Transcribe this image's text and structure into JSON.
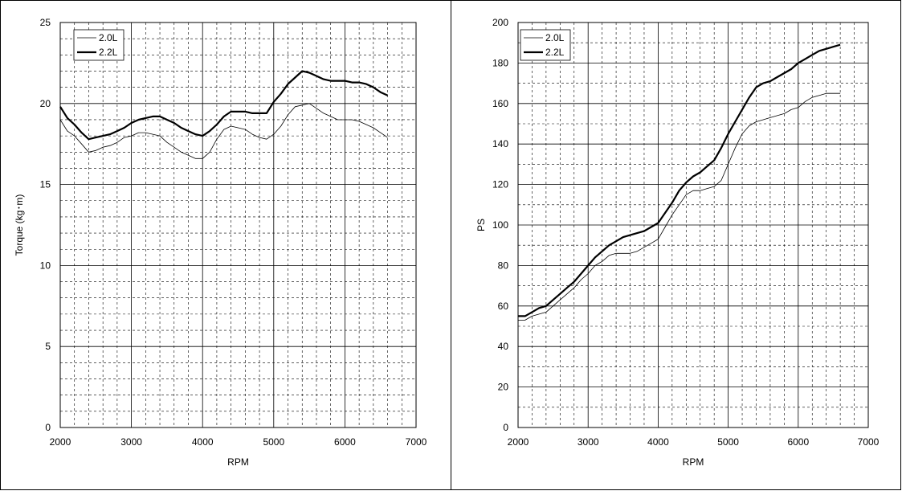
{
  "chart_data": [
    {
      "type": "line",
      "title": "",
      "xlabel": "RPM",
      "ylabel": "Torque (kg･m)",
      "xlim": [
        2000,
        7000
      ],
      "ylim": [
        0,
        25
      ],
      "x_ticks": [
        2000,
        3000,
        4000,
        5000,
        6000,
        7000
      ],
      "y_ticks": [
        0,
        5,
        10,
        15,
        20,
        25
      ],
      "grid": true,
      "legend_position": "top-left",
      "series": [
        {
          "name": "2.0L",
          "weight": "thin",
          "x": [
            2000,
            2100,
            2200,
            2300,
            2400,
            2500,
            2600,
            2700,
            2800,
            2900,
            3000,
            3100,
            3200,
            3300,
            3400,
            3500,
            3600,
            3700,
            3800,
            3900,
            4000,
            4100,
            4200,
            4300,
            4400,
            4500,
            4600,
            4700,
            4800,
            4900,
            5000,
            5100,
            5200,
            5300,
            5400,
            5500,
            5600,
            5700,
            5800,
            5900,
            6000,
            6100,
            6200,
            6300,
            6400,
            6500,
            6600
          ],
          "y": [
            19.0,
            18.3,
            18.0,
            17.5,
            17.0,
            17.1,
            17.3,
            17.4,
            17.6,
            17.9,
            18.0,
            18.2,
            18.2,
            18.1,
            18.0,
            17.6,
            17.3,
            17.0,
            16.8,
            16.6,
            16.6,
            17.0,
            17.8,
            18.4,
            18.6,
            18.5,
            18.4,
            18.1,
            17.9,
            17.8,
            18.1,
            18.6,
            19.3,
            19.8,
            19.9,
            20.0,
            19.7,
            19.4,
            19.2,
            19.0,
            19.0,
            19.0,
            18.9,
            18.7,
            18.5,
            18.2,
            17.9
          ]
        },
        {
          "name": "2.2L",
          "weight": "bold",
          "x": [
            2000,
            2100,
            2200,
            2300,
            2400,
            2500,
            2600,
            2700,
            2800,
            2900,
            3000,
            3100,
            3200,
            3300,
            3400,
            3500,
            3600,
            3700,
            3800,
            3900,
            4000,
            4100,
            4200,
            4300,
            4400,
            4500,
            4600,
            4700,
            4800,
            4900,
            5000,
            5100,
            5200,
            5300,
            5400,
            5500,
            5600,
            5700,
            5800,
            5900,
            6000,
            6100,
            6200,
            6300,
            6400,
            6500,
            6600
          ],
          "y": [
            19.8,
            19.1,
            18.7,
            18.2,
            17.8,
            17.9,
            18.0,
            18.1,
            18.3,
            18.5,
            18.8,
            19.0,
            19.1,
            19.2,
            19.2,
            19.0,
            18.8,
            18.5,
            18.3,
            18.1,
            18.0,
            18.3,
            18.7,
            19.2,
            19.5,
            19.5,
            19.5,
            19.4,
            19.4,
            19.4,
            20.1,
            20.6,
            21.2,
            21.6,
            22.0,
            21.9,
            21.7,
            21.5,
            21.4,
            21.4,
            21.4,
            21.3,
            21.3,
            21.2,
            21.0,
            20.7,
            20.5
          ]
        }
      ]
    },
    {
      "type": "line",
      "title": "",
      "xlabel": "RPM",
      "ylabel": "PS",
      "xlim": [
        2000,
        7000
      ],
      "ylim": [
        0,
        200
      ],
      "x_ticks": [
        2000,
        3000,
        4000,
        5000,
        6000,
        7000
      ],
      "y_ticks": [
        0,
        20,
        40,
        60,
        80,
        100,
        120,
        140,
        160,
        180,
        200
      ],
      "grid": true,
      "legend_position": "top-left",
      "series": [
        {
          "name": "2.0L",
          "weight": "thin",
          "x": [
            2000,
            2100,
            2200,
            2300,
            2400,
            2500,
            2600,
            2700,
            2800,
            2900,
            3000,
            3100,
            3200,
            3300,
            3400,
            3500,
            3600,
            3700,
            3800,
            3900,
            4000,
            4100,
            4200,
            4300,
            4400,
            4500,
            4600,
            4700,
            4800,
            4900,
            5000,
            5100,
            5200,
            5300,
            5400,
            5500,
            5600,
            5700,
            5800,
            5900,
            6000,
            6100,
            6200,
            6300,
            6400,
            6500,
            6600
          ],
          "y": [
            53,
            53,
            55,
            56,
            57,
            60,
            63,
            66,
            69,
            73,
            76,
            80,
            82,
            85,
            86,
            86,
            86,
            87,
            89,
            91,
            93,
            99,
            105,
            110,
            115,
            117,
            117,
            118,
            119,
            122,
            130,
            138,
            145,
            149,
            151,
            152,
            153,
            154,
            155,
            157,
            158,
            161,
            163,
            164,
            165,
            165,
            165
          ]
        },
        {
          "name": "2.2L",
          "weight": "bold",
          "x": [
            2000,
            2100,
            2200,
            2300,
            2400,
            2500,
            2600,
            2700,
            2800,
            2900,
            3000,
            3100,
            3200,
            3300,
            3400,
            3500,
            3600,
            3700,
            3800,
            3900,
            4000,
            4100,
            4200,
            4300,
            4400,
            4500,
            4600,
            4700,
            4800,
            4900,
            5000,
            5100,
            5200,
            5300,
            5400,
            5500,
            5600,
            5700,
            5800,
            5900,
            6000,
            6100,
            6200,
            6300,
            6400,
            6500,
            6600
          ],
          "y": [
            55,
            55,
            57,
            59,
            60,
            63,
            66,
            69,
            72,
            76,
            80,
            84,
            87,
            90,
            92,
            94,
            95,
            96,
            97,
            99,
            101,
            106,
            111,
            117,
            121,
            124,
            126,
            129,
            132,
            138,
            145,
            151,
            157,
            163,
            168,
            170,
            171,
            173,
            175,
            177,
            180,
            182,
            184,
            186,
            187,
            188,
            189
          ]
        }
      ]
    }
  ]
}
